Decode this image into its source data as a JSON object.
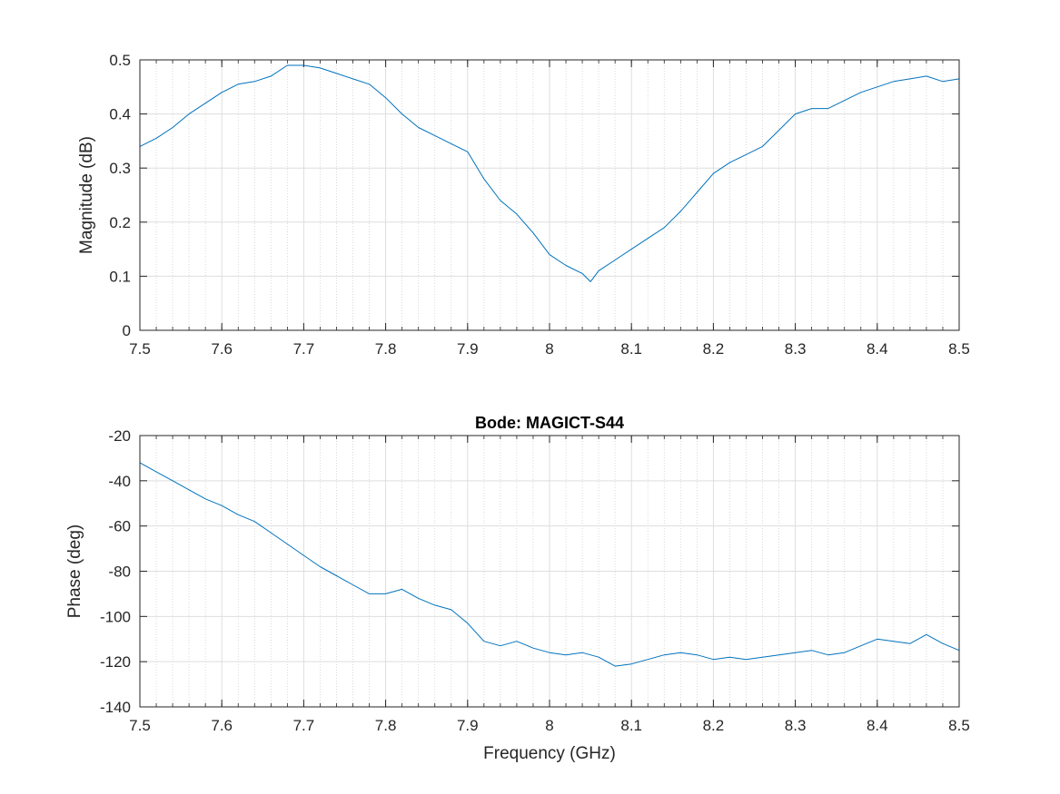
{
  "chart_data": [
    {
      "type": "line",
      "title": "",
      "xlabel": "",
      "ylabel": "Magnitude (dB)",
      "xlim": [
        7.5,
        8.5
      ],
      "ylim": [
        0,
        0.5
      ],
      "xticks": [
        7.5,
        7.6,
        7.7,
        7.8,
        7.9,
        8.0,
        8.1,
        8.2,
        8.3,
        8.4,
        8.5
      ],
      "xtick_labels": [
        "7.5",
        "7.6",
        "7.7",
        "7.8",
        "7.9",
        "8",
        "8.1",
        "8.2",
        "8.3",
        "8.4",
        "8.5"
      ],
      "yticks": [
        0,
        0.1,
        0.2,
        0.3,
        0.4,
        0.5
      ],
      "ytick_labels": [
        "0",
        "0.1",
        "0.2",
        "0.3",
        "0.4",
        "0.5"
      ],
      "grid": true,
      "minor_x_grid": true,
      "series": [
        {
          "color": "#0072BD",
          "x": [
            7.5,
            7.52,
            7.54,
            7.56,
            7.58,
            7.6,
            7.62,
            7.64,
            7.66,
            7.68,
            7.7,
            7.72,
            7.74,
            7.76,
            7.78,
            7.8,
            7.82,
            7.84,
            7.86,
            7.88,
            7.9,
            7.92,
            7.94,
            7.96,
            7.98,
            8.0,
            8.02,
            8.04,
            8.05,
            8.06,
            8.08,
            8.1,
            8.12,
            8.14,
            8.16,
            8.18,
            8.2,
            8.22,
            8.24,
            8.26,
            8.28,
            8.3,
            8.32,
            8.34,
            8.36,
            8.38,
            8.4,
            8.42,
            8.44,
            8.46,
            8.48,
            8.5
          ],
          "y": [
            0.34,
            0.355,
            0.375,
            0.4,
            0.42,
            0.44,
            0.455,
            0.46,
            0.47,
            0.49,
            0.49,
            0.485,
            0.475,
            0.465,
            0.455,
            0.43,
            0.4,
            0.375,
            0.36,
            0.345,
            0.33,
            0.28,
            0.24,
            0.215,
            0.18,
            0.14,
            0.12,
            0.105,
            0.09,
            0.11,
            0.13,
            0.15,
            0.17,
            0.19,
            0.22,
            0.255,
            0.29,
            0.31,
            0.325,
            0.34,
            0.37,
            0.4,
            0.41,
            0.41,
            0.425,
            0.44,
            0.45,
            0.46,
            0.465,
            0.47,
            0.46,
            0.465
          ]
        }
      ]
    },
    {
      "type": "line",
      "title": "Bode: MAGICT-S44",
      "xlabel": "Frequency (GHz)",
      "ylabel": "Phase (deg)",
      "xlim": [
        7.5,
        8.5
      ],
      "ylim": [
        -140,
        -20
      ],
      "xticks": [
        7.5,
        7.6,
        7.7,
        7.8,
        7.9,
        8.0,
        8.1,
        8.2,
        8.3,
        8.4,
        8.5
      ],
      "xtick_labels": [
        "7.5",
        "7.6",
        "7.7",
        "7.8",
        "7.9",
        "8",
        "8.1",
        "8.2",
        "8.3",
        "8.4",
        "8.5"
      ],
      "yticks": [
        -140,
        -120,
        -100,
        -80,
        -60,
        -40,
        -20
      ],
      "ytick_labels": [
        "-140",
        "-120",
        "-100",
        "-80",
        "-60",
        "-40",
        "-20"
      ],
      "grid": true,
      "minor_x_grid": true,
      "series": [
        {
          "color": "#0072BD",
          "x": [
            7.5,
            7.52,
            7.54,
            7.56,
            7.58,
            7.6,
            7.62,
            7.64,
            7.66,
            7.68,
            7.7,
            7.72,
            7.74,
            7.76,
            7.78,
            7.8,
            7.82,
            7.84,
            7.86,
            7.88,
            7.9,
            7.92,
            7.94,
            7.96,
            7.98,
            8.0,
            8.02,
            8.04,
            8.06,
            8.08,
            8.1,
            8.12,
            8.14,
            8.16,
            8.18,
            8.2,
            8.22,
            8.24,
            8.26,
            8.28,
            8.3,
            8.32,
            8.34,
            8.36,
            8.38,
            8.4,
            8.42,
            8.44,
            8.46,
            8.48,
            8.5
          ],
          "y": [
            -32,
            -36,
            -40,
            -44,
            -48,
            -51,
            -55,
            -58,
            -63,
            -68,
            -73,
            -78,
            -82,
            -86,
            -90,
            -90,
            -88,
            -92,
            -95,
            -97,
            -103,
            -111,
            -113,
            -111,
            -114,
            -116,
            -117,
            -116,
            -118,
            -122,
            -121,
            -119,
            -117,
            -116,
            -117,
            -119,
            -118,
            -119,
            -118,
            -117,
            -116,
            -115,
            -117,
            -116,
            -113,
            -110,
            -111,
            -112,
            -108,
            -112,
            -115
          ]
        }
      ]
    }
  ]
}
